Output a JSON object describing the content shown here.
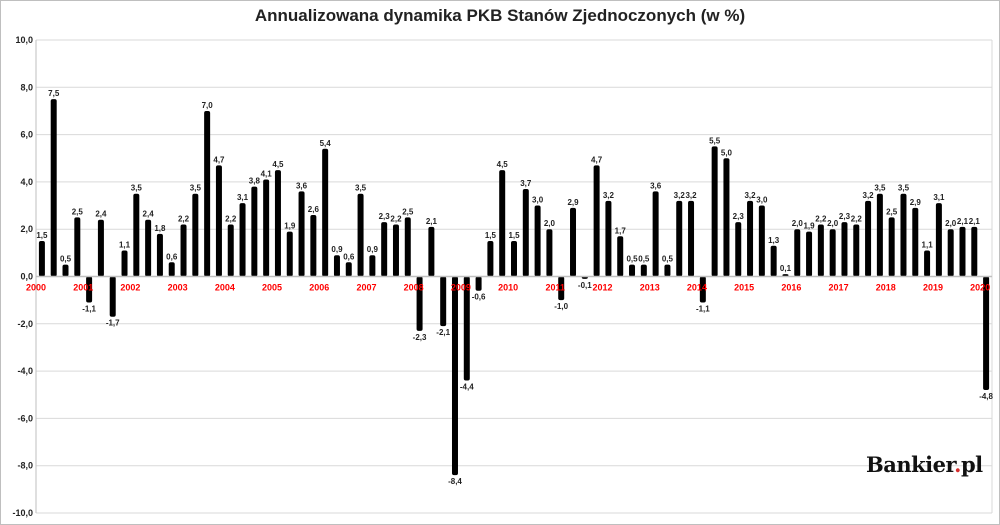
{
  "chart_data": {
    "type": "bar",
    "title": "Annualizowana dynamika PKB Stanów Zjednoczonych (w %)",
    "xlabel": "",
    "ylabel": "",
    "ylim": [
      -10,
      10
    ],
    "yticks": [
      "10,0",
      "8,0",
      "6,0",
      "4,0",
      "2,0",
      "0,0",
      "-2,0",
      "-4,0",
      "-6,0",
      "-8,0",
      "-10,0"
    ],
    "year_labels": [
      "2000",
      "2001",
      "2002",
      "2003",
      "2004",
      "2005",
      "2006",
      "2007",
      "2008",
      "2009",
      "2010",
      "2011",
      "2012",
      "2013",
      "2014",
      "2015",
      "2016",
      "2017",
      "2018",
      "2019",
      "2020"
    ],
    "values": [
      1.5,
      7.5,
      0.5,
      2.5,
      -1.1,
      2.4,
      -1.7,
      1.1,
      3.5,
      2.4,
      1.8,
      0.6,
      2.2,
      3.5,
      7.0,
      4.7,
      2.2,
      3.1,
      3.8,
      4.1,
      4.5,
      1.9,
      3.6,
      2.6,
      5.4,
      0.9,
      0.6,
      3.5,
      0.9,
      2.3,
      2.2,
      2.5,
      -2.3,
      2.1,
      -2.1,
      -8.4,
      -4.4,
      -0.6,
      1.5,
      4.5,
      1.5,
      3.7,
      3.0,
      2.0,
      -1.0,
      2.9,
      -0.1,
      4.7,
      3.2,
      1.7,
      0.5,
      0.5,
      3.6,
      0.5,
      3.2,
      3.2,
      -1.1,
      5.5,
      5.0,
      2.3,
      3.2,
      3.0,
      1.3,
      0.1,
      2.0,
      1.9,
      2.2,
      2.0,
      2.3,
      2.2,
      3.2,
      3.5,
      2.5,
      3.5,
      2.9,
      1.1,
      3.1,
      2.0,
      2.1,
      2.1,
      -4.8
    ],
    "data_labels": [
      "1,5",
      "7,5",
      "0,5",
      "2,5",
      "-1,1",
      "2,4",
      "-1,7",
      "1,1",
      "3,5",
      "2,4",
      "1,8",
      "0,6",
      "2,2",
      "3,5",
      "7,0",
      "4,7",
      "2,2",
      "3,1",
      "3,8",
      "4,1",
      "4,5",
      "1,9",
      "3,6",
      "2,6",
      "5,4",
      "0,9",
      "0,6",
      "3,5",
      "0,9",
      "2,3",
      "2,2",
      "2,5",
      "-2,3",
      "2,1",
      "-2,1",
      "-8,4",
      "-4,4",
      "-0,6",
      "1,5",
      "4,5",
      "1,5",
      "3,7",
      "3,0",
      "2,0",
      "-1,0",
      "2,9",
      "-0,1",
      "4,7",
      "3,2",
      "1,7",
      "0,5",
      "0,5",
      "3,6",
      "0,5",
      "3,2",
      "3,2",
      "-1,1",
      "5,5",
      "5,0",
      "2,3",
      "3,2",
      "3,0",
      "1,3",
      "0,1",
      "2,0",
      "1,9",
      "2,2",
      "2,0",
      "2,3",
      "2,2",
      "3,2",
      "3,5",
      "2,5",
      "3,5",
      "2,9",
      "1,1",
      "3,1",
      "2,0",
      "2,1",
      "2,1",
      "-4,8"
    ],
    "colors": {
      "bar": "#000000",
      "year_label": "#ff0000",
      "grid": "#d9d9d9",
      "zero_line": "#bfbfbf"
    },
    "grid": true,
    "legend": "none"
  },
  "watermark": {
    "brand": "Bankier",
    "dot": ".",
    "suffix": "pl"
  }
}
